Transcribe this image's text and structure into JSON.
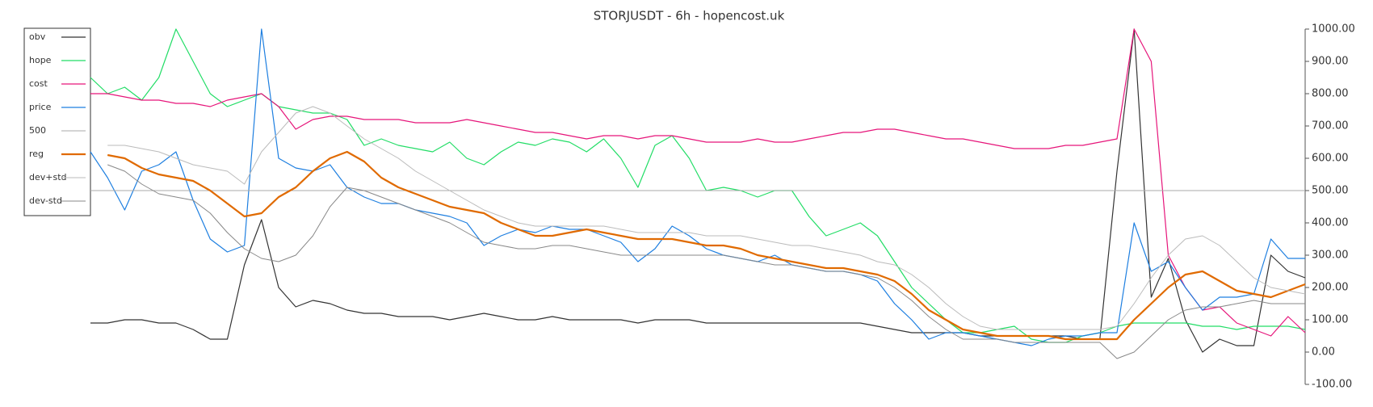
{
  "chart_data": {
    "type": "line",
    "title": "STORJUSDT - 6h - hopencost.uk",
    "ylim": [
      -100,
      1000
    ],
    "yticks": [
      {
        "value": -100,
        "label": "-100.00"
      },
      {
        "value": 0,
        "label": "0.00"
      },
      {
        "value": 100,
        "label": "100.00"
      },
      {
        "value": 200,
        "label": "200.00"
      },
      {
        "value": 300,
        "label": "300.00"
      },
      {
        "value": 400,
        "label": "400.00"
      },
      {
        "value": 500,
        "label": "500.00"
      },
      {
        "value": 600,
        "label": "600.00"
      },
      {
        "value": 700,
        "label": "700.00"
      },
      {
        "value": 800,
        "label": "800.00"
      },
      {
        "value": 900,
        "label": "900.00"
      },
      {
        "value": 1000,
        "label": "1000.00"
      }
    ],
    "grid": false,
    "legend": "upper left",
    "series": [
      {
        "name": "obv",
        "color": "#333333",
        "line_width": 1.2,
        "values": [
          90,
          90,
          100,
          100,
          90,
          90,
          70,
          40,
          40,
          270,
          410,
          200,
          140,
          160,
          150,
          130,
          120,
          120,
          110,
          110,
          110,
          100,
          110,
          120,
          110,
          100,
          100,
          110,
          100,
          100,
          100,
          100,
          90,
          100,
          100,
          100,
          90,
          90,
          90,
          90,
          90,
          90,
          90,
          90,
          90,
          90,
          80,
          70,
          60,
          60,
          60,
          60,
          50,
          50,
          50,
          50,
          50,
          50,
          40,
          40,
          560,
          1000,
          170,
          290,
          100,
          0,
          40,
          20,
          20,
          300,
          250,
          230
        ]
      },
      {
        "name": "hope",
        "color": "#22dd66",
        "line_width": 1.2,
        "values": [
          850,
          800,
          820,
          780,
          850,
          1000,
          900,
          800,
          760,
          780,
          800,
          760,
          750,
          740,
          740,
          720,
          640,
          660,
          640,
          630,
          620,
          650,
          600,
          580,
          620,
          650,
          640,
          660,
          650,
          620,
          660,
          600,
          510,
          640,
          670,
          600,
          500,
          510,
          500,
          480,
          500,
          500,
          420,
          360,
          380,
          400,
          360,
          280,
          200,
          150,
          100,
          60,
          60,
          70,
          80,
          40,
          30,
          30,
          50,
          60,
          80,
          90,
          90,
          90,
          90,
          80,
          80,
          70,
          80,
          80,
          80,
          70
        ]
      },
      {
        "name": "cost",
        "color": "#e6157a",
        "line_width": 1.2,
        "values": [
          800,
          800,
          790,
          780,
          780,
          770,
          770,
          760,
          780,
          790,
          800,
          760,
          690,
          720,
          730,
          730,
          720,
          720,
          720,
          710,
          710,
          710,
          720,
          710,
          700,
          690,
          680,
          680,
          670,
          660,
          670,
          670,
          660,
          670,
          670,
          660,
          650,
          650,
          650,
          660,
          650,
          650,
          660,
          670,
          680,
          680,
          690,
          690,
          680,
          670,
          660,
          660,
          650,
          640,
          630,
          630,
          630,
          640,
          640,
          650,
          660,
          1000,
          900,
          300,
          200,
          130,
          140,
          90,
          70,
          50,
          110,
          60
        ]
      },
      {
        "name": "price",
        "color": "#1e7fe0",
        "line_width": 1.2,
        "values": [
          620,
          540,
          440,
          560,
          580,
          620,
          470,
          350,
          310,
          330,
          1000,
          600,
          570,
          560,
          580,
          510,
          480,
          460,
          460,
          440,
          430,
          420,
          400,
          330,
          360,
          380,
          370,
          390,
          380,
          380,
          360,
          340,
          280,
          320,
          390,
          360,
          320,
          300,
          290,
          280,
          300,
          270,
          260,
          250,
          250,
          240,
          220,
          150,
          100,
          40,
          60,
          60,
          50,
          40,
          30,
          20,
          40,
          50,
          50,
          60,
          60,
          400,
          250,
          280,
          200,
          130,
          170,
          170,
          180,
          350,
          290,
          290
        ]
      },
      {
        "name": "500",
        "color": "#aaaaaa",
        "line_width": 1,
        "values": [
          500,
          500,
          500,
          500,
          500,
          500,
          500,
          500,
          500,
          500,
          500,
          500,
          500,
          500,
          500,
          500,
          500,
          500,
          500,
          500,
          500,
          500,
          500,
          500,
          500,
          500,
          500,
          500,
          500,
          500,
          500,
          500,
          500,
          500,
          500,
          500,
          500,
          500,
          500,
          500,
          500,
          500,
          500,
          500,
          500,
          500,
          500,
          500,
          500,
          500,
          500,
          500,
          500,
          500,
          500,
          500,
          500,
          500,
          500,
          500,
          500,
          500,
          500,
          500,
          500,
          500,
          500,
          500,
          500,
          500,
          500,
          500
        ]
      },
      {
        "name": "reg",
        "color": "#e06a00",
        "line_width": 2.2,
        "values": [
          null,
          610,
          600,
          570,
          550,
          540,
          530,
          500,
          460,
          420,
          430,
          480,
          510,
          560,
          600,
          620,
          590,
          540,
          510,
          490,
          470,
          450,
          440,
          430,
          400,
          380,
          360,
          360,
          370,
          380,
          370,
          360,
          350,
          350,
          350,
          340,
          330,
          330,
          320,
          300,
          290,
          280,
          270,
          260,
          260,
          250,
          240,
          220,
          180,
          130,
          100,
          70,
          60,
          50,
          50,
          50,
          50,
          40,
          40,
          40,
          40,
          100,
          150,
          200,
          240,
          250,
          220,
          190,
          180,
          170,
          190,
          210
        ]
      },
      {
        "name": "dev+std",
        "color": "#bbbbbb",
        "line_width": 1,
        "values": [
          null,
          640,
          640,
          630,
          620,
          600,
          580,
          570,
          560,
          520,
          620,
          680,
          740,
          760,
          740,
          700,
          660,
          630,
          600,
          560,
          530,
          500,
          470,
          440,
          420,
          400,
          390,
          390,
          390,
          390,
          390,
          380,
          370,
          370,
          370,
          370,
          360,
          360,
          360,
          350,
          340,
          330,
          330,
          320,
          310,
          300,
          280,
          270,
          240,
          200,
          150,
          110,
          80,
          70,
          70,
          70,
          70,
          70,
          70,
          70,
          80,
          150,
          230,
          300,
          350,
          360,
          330,
          280,
          230,
          200,
          190,
          180
        ]
      },
      {
        "name": "dev-std",
        "color": "#888888",
        "line_width": 1,
        "values": [
          null,
          580,
          560,
          520,
          490,
          480,
          470,
          430,
          370,
          320,
          290,
          280,
          300,
          360,
          450,
          510,
          500,
          480,
          460,
          440,
          420,
          400,
          370,
          340,
          330,
          320,
          320,
          330,
          330,
          320,
          310,
          300,
          300,
          300,
          300,
          300,
          300,
          300,
          290,
          280,
          270,
          270,
          260,
          250,
          250,
          240,
          230,
          200,
          160,
          110,
          70,
          40,
          40,
          40,
          30,
          30,
          30,
          30,
          30,
          30,
          -20,
          0,
          50,
          100,
          130,
          140,
          140,
          150,
          160,
          150,
          150,
          150
        ]
      }
    ]
  }
}
